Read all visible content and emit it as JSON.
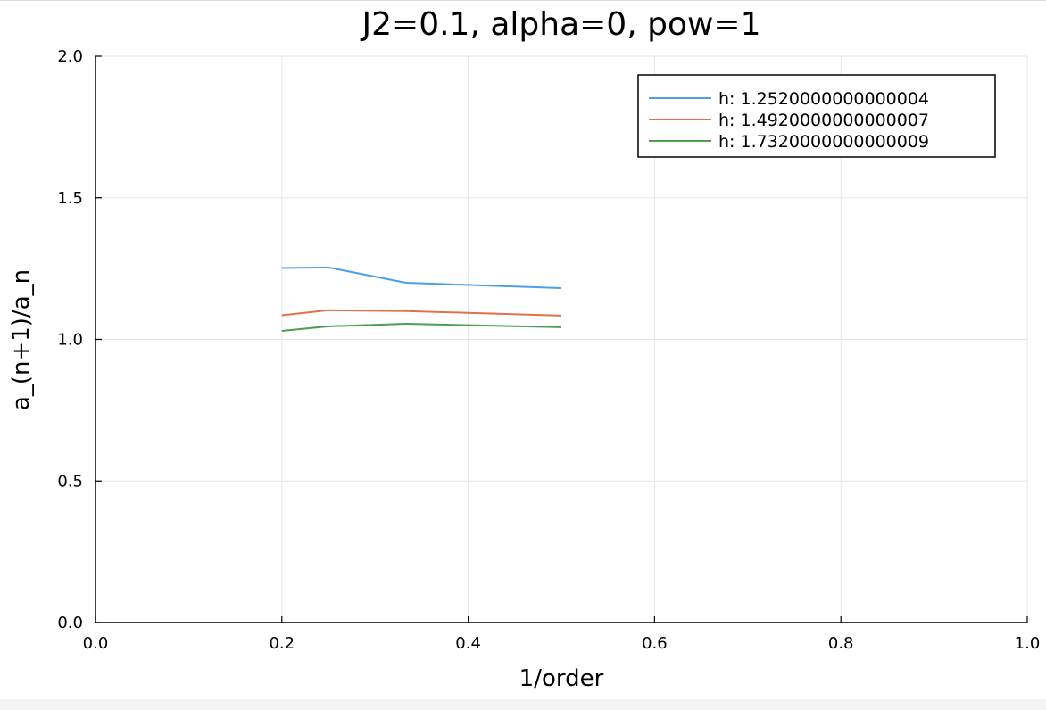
{
  "chart_data": {
    "type": "line",
    "title": "J2=0.1, alpha=0, pow=1",
    "xlabel": "1/order",
    "ylabel": "a_(n+1)/a_n",
    "xlim": [
      0.0,
      1.0
    ],
    "ylim": [
      0.0,
      2.0
    ],
    "xticks": [
      "0.0",
      "0.2",
      "0.4",
      "0.6",
      "0.8",
      "1.0"
    ],
    "yticks": [
      "0.0",
      "0.5",
      "1.0",
      "1.5",
      "2.0"
    ],
    "grid": true,
    "legend_position": "top-right",
    "x": [
      0.2,
      0.25,
      0.3333,
      0.5
    ],
    "series": [
      {
        "name": "h: 1.2520000000000004",
        "color": "#4b9fe7",
        "values": [
          1.252,
          1.254,
          1.2,
          1.181
        ]
      },
      {
        "name": "h: 1.4920000000000007",
        "color": "#e0714a",
        "values": [
          1.085,
          1.103,
          1.1,
          1.084
        ]
      },
      {
        "name": "h: 1.7320000000000009",
        "color": "#4f9e4f",
        "values": [
          1.03,
          1.046,
          1.055,
          1.043
        ]
      }
    ]
  }
}
